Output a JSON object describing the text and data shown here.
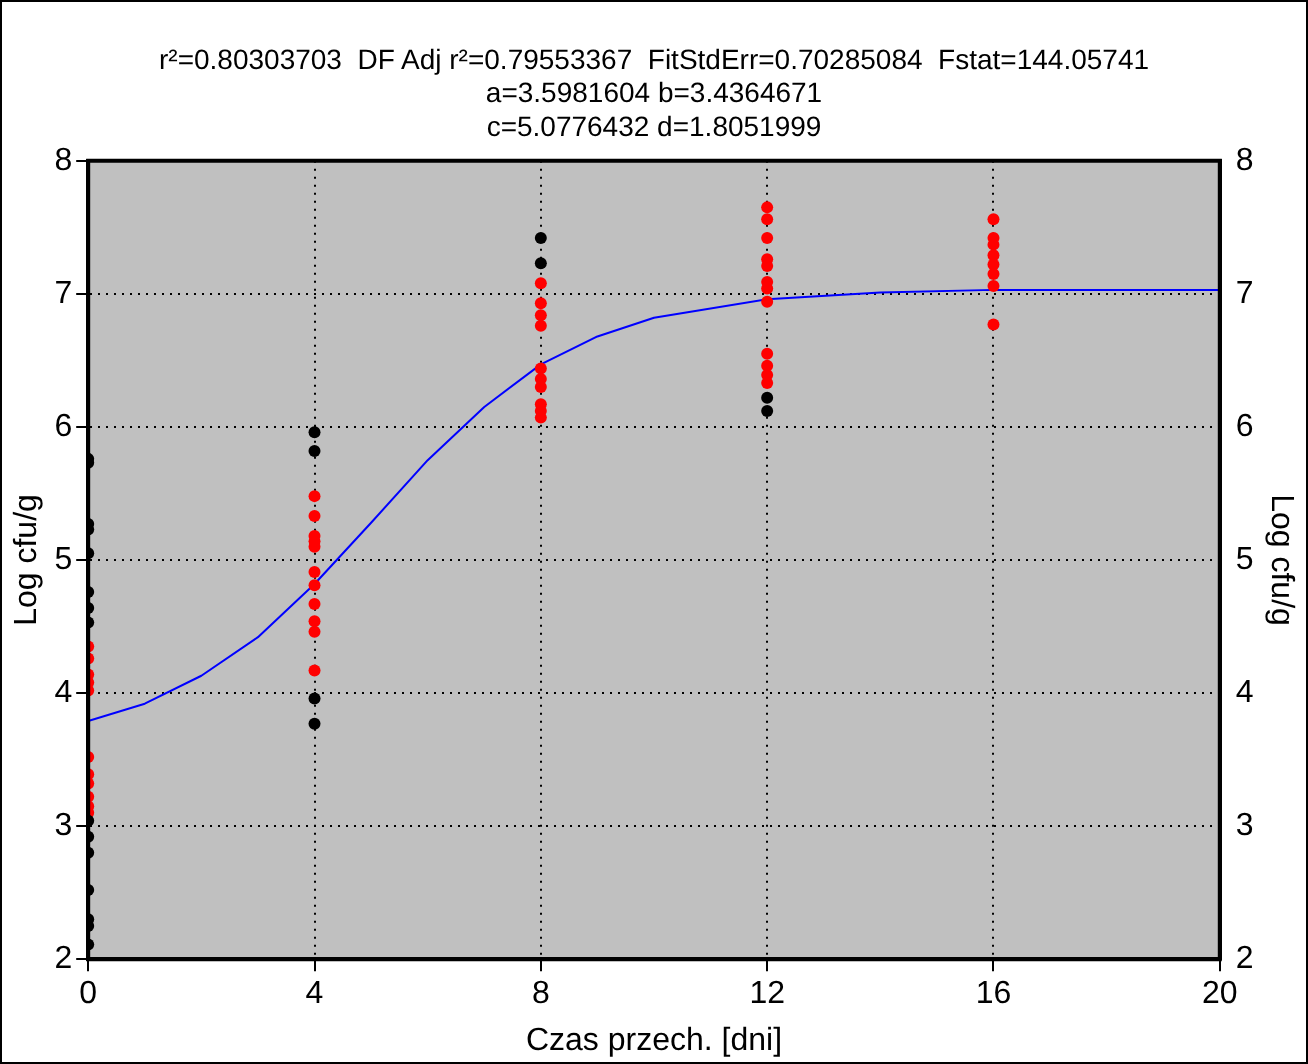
{
  "chart_data": {
    "type": "scatter",
    "title": "r²=0.80303703  DF Adj r²=0.79553367  FitStdErr=0.70285084  Fstat=144.05741",
    "subtitle": "a=3.5981604 b=3.4364671\nc=5.0776432 d=1.8051999",
    "xlabel": "Czas przech. [dni]",
    "ylabel": "Log cfu/g",
    "y2label": "Log cfu/g",
    "xlim": [
      0,
      20
    ],
    "xticks": [
      0,
      4,
      8,
      12,
      16,
      20
    ],
    "ylim": [
      2,
      8
    ],
    "yticks": [
      2,
      3,
      4,
      5,
      6,
      7,
      8
    ],
    "y2lim": [
      2,
      8
    ],
    "y2ticks": [
      2,
      3,
      4,
      5,
      6,
      7,
      8
    ],
    "grid": true,
    "marker": "circle",
    "series": [
      {
        "color": "#000000",
        "x": [
          0,
          0,
          0,
          0,
          0,
          0,
          0,
          0,
          0,
          0,
          0,
          0,
          0,
          0,
          0,
          4,
          4,
          4,
          4,
          8,
          8,
          12,
          12
        ],
        "values": [
          5.76,
          5.73,
          5.27,
          5.23,
          5.05,
          4.76,
          4.64,
          4.53,
          3.04,
          2.92,
          2.8,
          2.52,
          2.3,
          2.25,
          2.11,
          5.96,
          5.82,
          3.96,
          3.77,
          7.42,
          7.23,
          6.22,
          6.12
        ]
      },
      {
        "color": "#ff0000",
        "x": [
          0,
          0,
          0,
          0,
          0,
          0,
          0,
          0,
          0,
          0,
          0,
          4,
          4,
          4,
          4,
          4,
          4,
          4,
          4,
          4,
          4,
          4,
          8,
          8,
          8,
          8,
          8,
          8,
          8,
          8,
          8,
          8,
          12,
          12,
          12,
          12,
          12,
          12,
          12,
          12,
          12,
          12,
          12,
          12,
          16,
          16,
          16,
          16,
          16,
          16,
          16,
          16
        ],
        "values": [
          4.35,
          4.26,
          4.14,
          4.08,
          4.02,
          3.52,
          3.39,
          3.32,
          3.22,
          3.15,
          3.1,
          5.48,
          5.33,
          5.18,
          5.14,
          5.1,
          4.91,
          4.81,
          4.67,
          4.54,
          4.46,
          4.17,
          7.08,
          6.93,
          6.84,
          6.76,
          6.44,
          6.36,
          6.3,
          6.17,
          6.12,
          6.07,
          7.65,
          7.56,
          7.42,
          7.26,
          7.21,
          7.09,
          7.04,
          6.94,
          6.55,
          6.46,
          6.39,
          6.33,
          7.56,
          7.42,
          7.37,
          7.29,
          7.22,
          7.15,
          7.06,
          6.77
        ]
      },
      {
        "type": "line",
        "marker": "none",
        "color": "#0000ff",
        "x": [
          0,
          1,
          2,
          3,
          4,
          5,
          6,
          7,
          8,
          9,
          10,
          12,
          14,
          16,
          18,
          20
        ],
        "values": [
          3.79,
          3.92,
          4.13,
          4.42,
          4.82,
          5.28,
          5.75,
          6.15,
          6.47,
          6.68,
          6.82,
          6.96,
          7.01,
          7.03,
          7.03,
          7.03
        ]
      }
    ]
  }
}
